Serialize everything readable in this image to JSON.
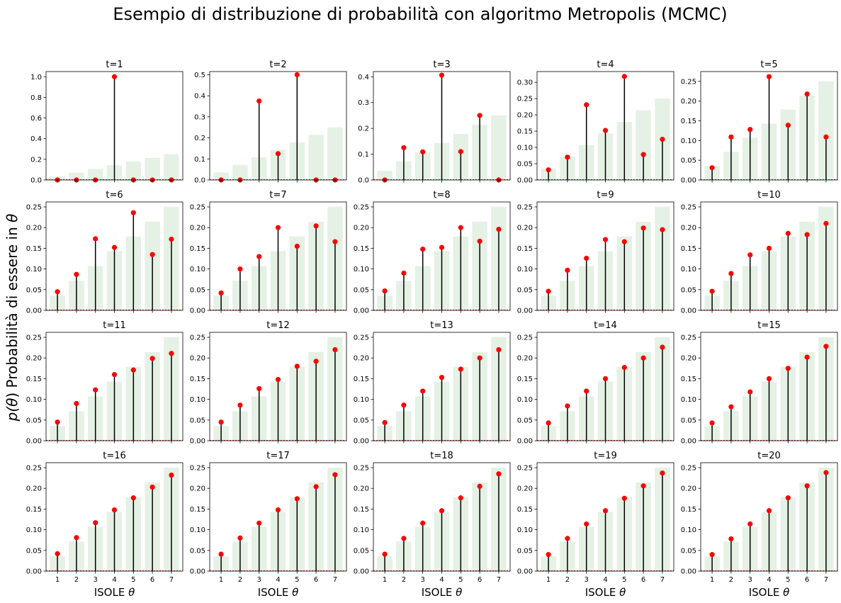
{
  "figure": {
    "suptitle": "Esempio di distribuzione di probabilità con algoritmo Metropolis (MCMC)",
    "ylabel_prefix": "p(",
    "ylabel_theta": "θ",
    "ylabel_middle": ") Probabilità di essere in ",
    "ylabel_theta2": "θ",
    "xlabel_text": "ISOLE ",
    "xlabel_theta": "θ"
  },
  "colors": {
    "bar": "#e4f1e4",
    "stem": "#000000",
    "marker": "#ff0000",
    "baseline": "#d62728"
  },
  "chart_data": {
    "type": "bar",
    "layout": "small multiples, 4 rows x 5 columns, shared x axis",
    "x": [
      1,
      2,
      3,
      4,
      5,
      6,
      7
    ],
    "xticks": [
      "1",
      "2",
      "3",
      "4",
      "5",
      "6",
      "7"
    ],
    "target_bars": [
      0.0357,
      0.0714,
      0.1071,
      0.1429,
      0.1786,
      0.2143,
      0.25
    ],
    "panels": [
      {
        "title": "t=1",
        "ylim": [
          0,
          1.05
        ],
        "yticks": [
          0,
          0.2,
          0.4,
          0.6,
          0.8,
          1.0
        ],
        "tick_decimals": 1,
        "values": [
          0,
          0,
          0,
          1.0,
          0,
          0,
          0
        ]
      },
      {
        "title": "t=2",
        "ylim": [
          0,
          0.515
        ],
        "yticks": [
          0,
          0.1,
          0.2,
          0.3,
          0.4,
          0.5
        ],
        "tick_decimals": 1,
        "values": [
          0,
          0,
          0.375,
          0.125,
          0.5,
          0,
          0
        ]
      },
      {
        "title": "t=3",
        "ylim": [
          0,
          0.42
        ],
        "yticks": [
          0,
          0.1,
          0.2,
          0.3,
          0.4
        ],
        "tick_decimals": 1,
        "values": [
          0,
          0.125,
          0.109,
          0.406,
          0.11,
          0.25,
          0
        ]
      },
      {
        "title": "t=4",
        "ylim": [
          0,
          0.333
        ],
        "yticks": [
          0,
          0.05,
          0.1,
          0.15,
          0.2,
          0.25,
          0.3
        ],
        "tick_decimals": 2,
        "values": [
          0.031,
          0.07,
          0.231,
          0.152,
          0.318,
          0.078,
          0.125
        ]
      },
      {
        "title": "t=5",
        "ylim": [
          0,
          0.275
        ],
        "yticks": [
          0,
          0.05,
          0.1,
          0.15,
          0.2,
          0.25
        ],
        "tick_decimals": 2,
        "values": [
          0.031,
          0.109,
          0.128,
          0.262,
          0.139,
          0.218,
          0.109
        ]
      },
      {
        "title": "t=6",
        "ylim": [
          0,
          0.262
        ],
        "yticks": [
          0,
          0.05,
          0.1,
          0.15,
          0.2,
          0.25
        ],
        "tick_decimals": 2,
        "values": [
          0.045,
          0.087,
          0.173,
          0.152,
          0.236,
          0.135,
          0.172
        ]
      },
      {
        "title": "t=7",
        "ylim": [
          0,
          0.262
        ],
        "yticks": [
          0,
          0.05,
          0.1,
          0.15,
          0.2,
          0.25
        ],
        "tick_decimals": 2,
        "values": [
          0.042,
          0.1,
          0.13,
          0.2,
          0.155,
          0.204,
          0.166
        ]
      },
      {
        "title": "t=8",
        "ylim": [
          0,
          0.262
        ],
        "yticks": [
          0,
          0.05,
          0.1,
          0.15,
          0.2,
          0.25
        ],
        "tick_decimals": 2,
        "values": [
          0.047,
          0.09,
          0.148,
          0.152,
          0.2,
          0.167,
          0.196
        ]
      },
      {
        "title": "t=9",
        "ylim": [
          0,
          0.262
        ],
        "yticks": [
          0,
          0.05,
          0.1,
          0.15,
          0.2,
          0.25
        ],
        "tick_decimals": 2,
        "values": [
          0.046,
          0.097,
          0.126,
          0.171,
          0.166,
          0.199,
          0.195
        ]
      },
      {
        "title": "t=10",
        "ylim": [
          0,
          0.262
        ],
        "yticks": [
          0,
          0.05,
          0.1,
          0.15,
          0.2,
          0.25
        ],
        "tick_decimals": 2,
        "values": [
          0.046,
          0.089,
          0.134,
          0.15,
          0.186,
          0.183,
          0.21
        ]
      },
      {
        "title": "t=11",
        "ylim": [
          0,
          0.262
        ],
        "yticks": [
          0,
          0.05,
          0.1,
          0.15,
          0.2,
          0.25
        ],
        "tick_decimals": 2,
        "values": [
          0.045,
          0.09,
          0.123,
          0.16,
          0.171,
          0.199,
          0.211
        ]
      },
      {
        "title": "t=12",
        "ylim": [
          0,
          0.262
        ],
        "yticks": [
          0,
          0.05,
          0.1,
          0.15,
          0.2,
          0.25
        ],
        "tick_decimals": 2,
        "values": [
          0.045,
          0.086,
          0.126,
          0.148,
          0.18,
          0.192,
          0.22
        ]
      },
      {
        "title": "t=13",
        "ylim": [
          0,
          0.262
        ],
        "yticks": [
          0,
          0.05,
          0.1,
          0.15,
          0.2,
          0.25
        ],
        "tick_decimals": 2,
        "values": [
          0.044,
          0.086,
          0.12,
          0.153,
          0.173,
          0.2,
          0.22
        ]
      },
      {
        "title": "t=14",
        "ylim": [
          0,
          0.262
        ],
        "yticks": [
          0,
          0.05,
          0.1,
          0.15,
          0.2,
          0.25
        ],
        "tick_decimals": 2,
        "values": [
          0.043,
          0.084,
          0.12,
          0.15,
          0.177,
          0.2,
          0.226
        ]
      },
      {
        "title": "t=15",
        "ylim": [
          0,
          0.262
        ],
        "yticks": [
          0,
          0.05,
          0.1,
          0.15,
          0.2,
          0.25
        ],
        "tick_decimals": 2,
        "values": [
          0.043,
          0.082,
          0.118,
          0.15,
          0.175,
          0.202,
          0.228
        ]
      },
      {
        "title": "t=16",
        "ylim": [
          0,
          0.262
        ],
        "yticks": [
          0,
          0.05,
          0.1,
          0.15,
          0.2,
          0.25
        ],
        "tick_decimals": 2,
        "values": [
          0.042,
          0.081,
          0.117,
          0.148,
          0.177,
          0.203,
          0.232
        ]
      },
      {
        "title": "t=17",
        "ylim": [
          0,
          0.262
        ],
        "yticks": [
          0,
          0.05,
          0.1,
          0.15,
          0.2,
          0.25
        ],
        "tick_decimals": 2,
        "values": [
          0.041,
          0.08,
          0.116,
          0.148,
          0.175,
          0.204,
          0.233
        ]
      },
      {
        "title": "t=18",
        "ylim": [
          0,
          0.262
        ],
        "yticks": [
          0,
          0.05,
          0.1,
          0.15,
          0.2,
          0.25
        ],
        "tick_decimals": 2,
        "values": [
          0.041,
          0.079,
          0.116,
          0.146,
          0.177,
          0.205,
          0.235
        ]
      },
      {
        "title": "t=19",
        "ylim": [
          0,
          0.262
        ],
        "yticks": [
          0,
          0.05,
          0.1,
          0.15,
          0.2,
          0.25
        ],
        "tick_decimals": 2,
        "values": [
          0.04,
          0.079,
          0.114,
          0.146,
          0.176,
          0.206,
          0.237
        ]
      },
      {
        "title": "t=20",
        "ylim": [
          0,
          0.262
        ],
        "yticks": [
          0,
          0.05,
          0.1,
          0.15,
          0.2,
          0.25
        ],
        "tick_decimals": 2,
        "values": [
          0.04,
          0.078,
          0.114,
          0.146,
          0.177,
          0.206,
          0.238
        ]
      }
    ]
  }
}
